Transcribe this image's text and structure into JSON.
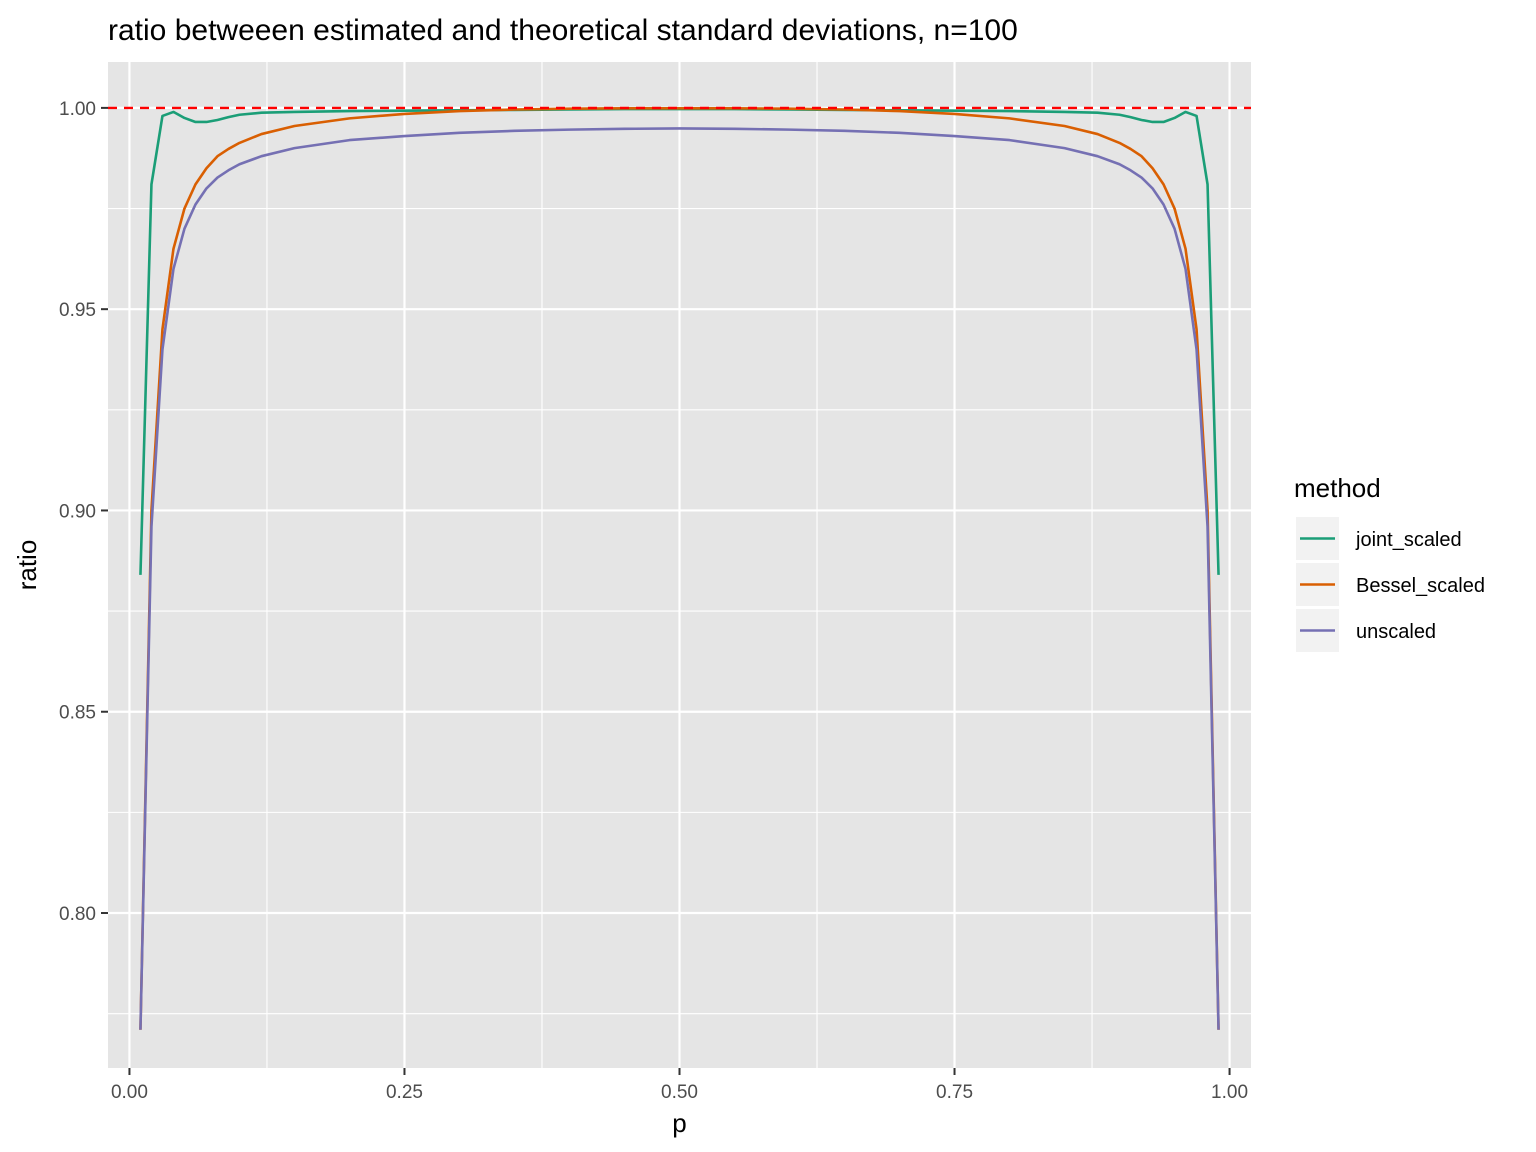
{
  "chart_data": {
    "type": "line",
    "title": "ratio betweeen estimated and theoretical standard deviations, n=100",
    "xlabel": "p",
    "ylabel": "ratio",
    "xlim": [
      -0.0195,
      1.0195
    ],
    "ylim": [
      0.7615,
      1.0114
    ],
    "x_ticks": [
      0.0,
      0.25,
      0.5,
      0.75,
      1.0
    ],
    "x_tick_labels": [
      "0.00",
      "0.25",
      "0.50",
      "0.75",
      "1.00"
    ],
    "y_ticks": [
      0.8,
      0.85,
      0.9,
      0.95,
      1.0
    ],
    "y_tick_labels": [
      "0.80",
      "0.85",
      "0.90",
      "0.95",
      "1.00"
    ],
    "grid": true,
    "panel_background": "#e5e5e5",
    "grid_color": "#ffffff",
    "reference_line": {
      "y": 1.0,
      "color": "#ff0000",
      "style": "dashed"
    },
    "legend": {
      "title": "method",
      "position": "right"
    },
    "x": [
      0.01,
      0.02,
      0.03,
      0.04,
      0.05,
      0.06,
      0.07,
      0.08,
      0.09,
      0.1,
      0.12,
      0.15,
      0.2,
      0.25,
      0.3,
      0.35,
      0.4,
      0.45,
      0.5,
      0.55,
      0.6,
      0.65,
      0.7,
      0.75,
      0.8,
      0.85,
      0.88,
      0.9,
      0.91,
      0.92,
      0.93,
      0.94,
      0.95,
      0.96,
      0.97,
      0.98,
      0.99
    ],
    "series": [
      {
        "name": "joint_scaled",
        "color": "#1b9e77",
        "values": [
          0.884,
          0.981,
          0.998,
          0.999,
          0.9975,
          0.9965,
          0.9965,
          0.997,
          0.9977,
          0.9983,
          0.9988,
          0.999,
          0.9992,
          0.9993,
          0.9994,
          0.9995,
          0.9996,
          0.9997,
          0.9997,
          0.9997,
          0.9996,
          0.9995,
          0.9994,
          0.9993,
          0.9992,
          0.999,
          0.9988,
          0.9983,
          0.9977,
          0.997,
          0.9965,
          0.9965,
          0.9975,
          0.999,
          0.998,
          0.981,
          0.884
        ]
      },
      {
        "name": "Bessel_scaled",
        "color": "#d95f02",
        "values": [
          0.771,
          0.9,
          0.945,
          0.965,
          0.975,
          0.981,
          0.985,
          0.988,
          0.9898,
          0.9913,
          0.9935,
          0.9955,
          0.9974,
          0.9985,
          0.9992,
          0.9996,
          0.9998,
          0.9999,
          0.9999,
          0.9999,
          0.9998,
          0.9996,
          0.9992,
          0.9985,
          0.9974,
          0.9955,
          0.9935,
          0.9913,
          0.9898,
          0.988,
          0.985,
          0.981,
          0.975,
          0.965,
          0.945,
          0.9,
          0.771
        ]
      },
      {
        "name": "unscaled",
        "color": "#7570b3",
        "values": [
          0.771,
          0.896,
          0.94,
          0.96,
          0.97,
          0.976,
          0.98,
          0.9827,
          0.9845,
          0.986,
          0.988,
          0.99,
          0.992,
          0.993,
          0.9938,
          0.9943,
          0.9946,
          0.9948,
          0.9949,
          0.9948,
          0.9946,
          0.9943,
          0.9938,
          0.993,
          0.992,
          0.99,
          0.988,
          0.986,
          0.9845,
          0.9827,
          0.98,
          0.976,
          0.97,
          0.96,
          0.94,
          0.896,
          0.771
        ]
      }
    ]
  }
}
